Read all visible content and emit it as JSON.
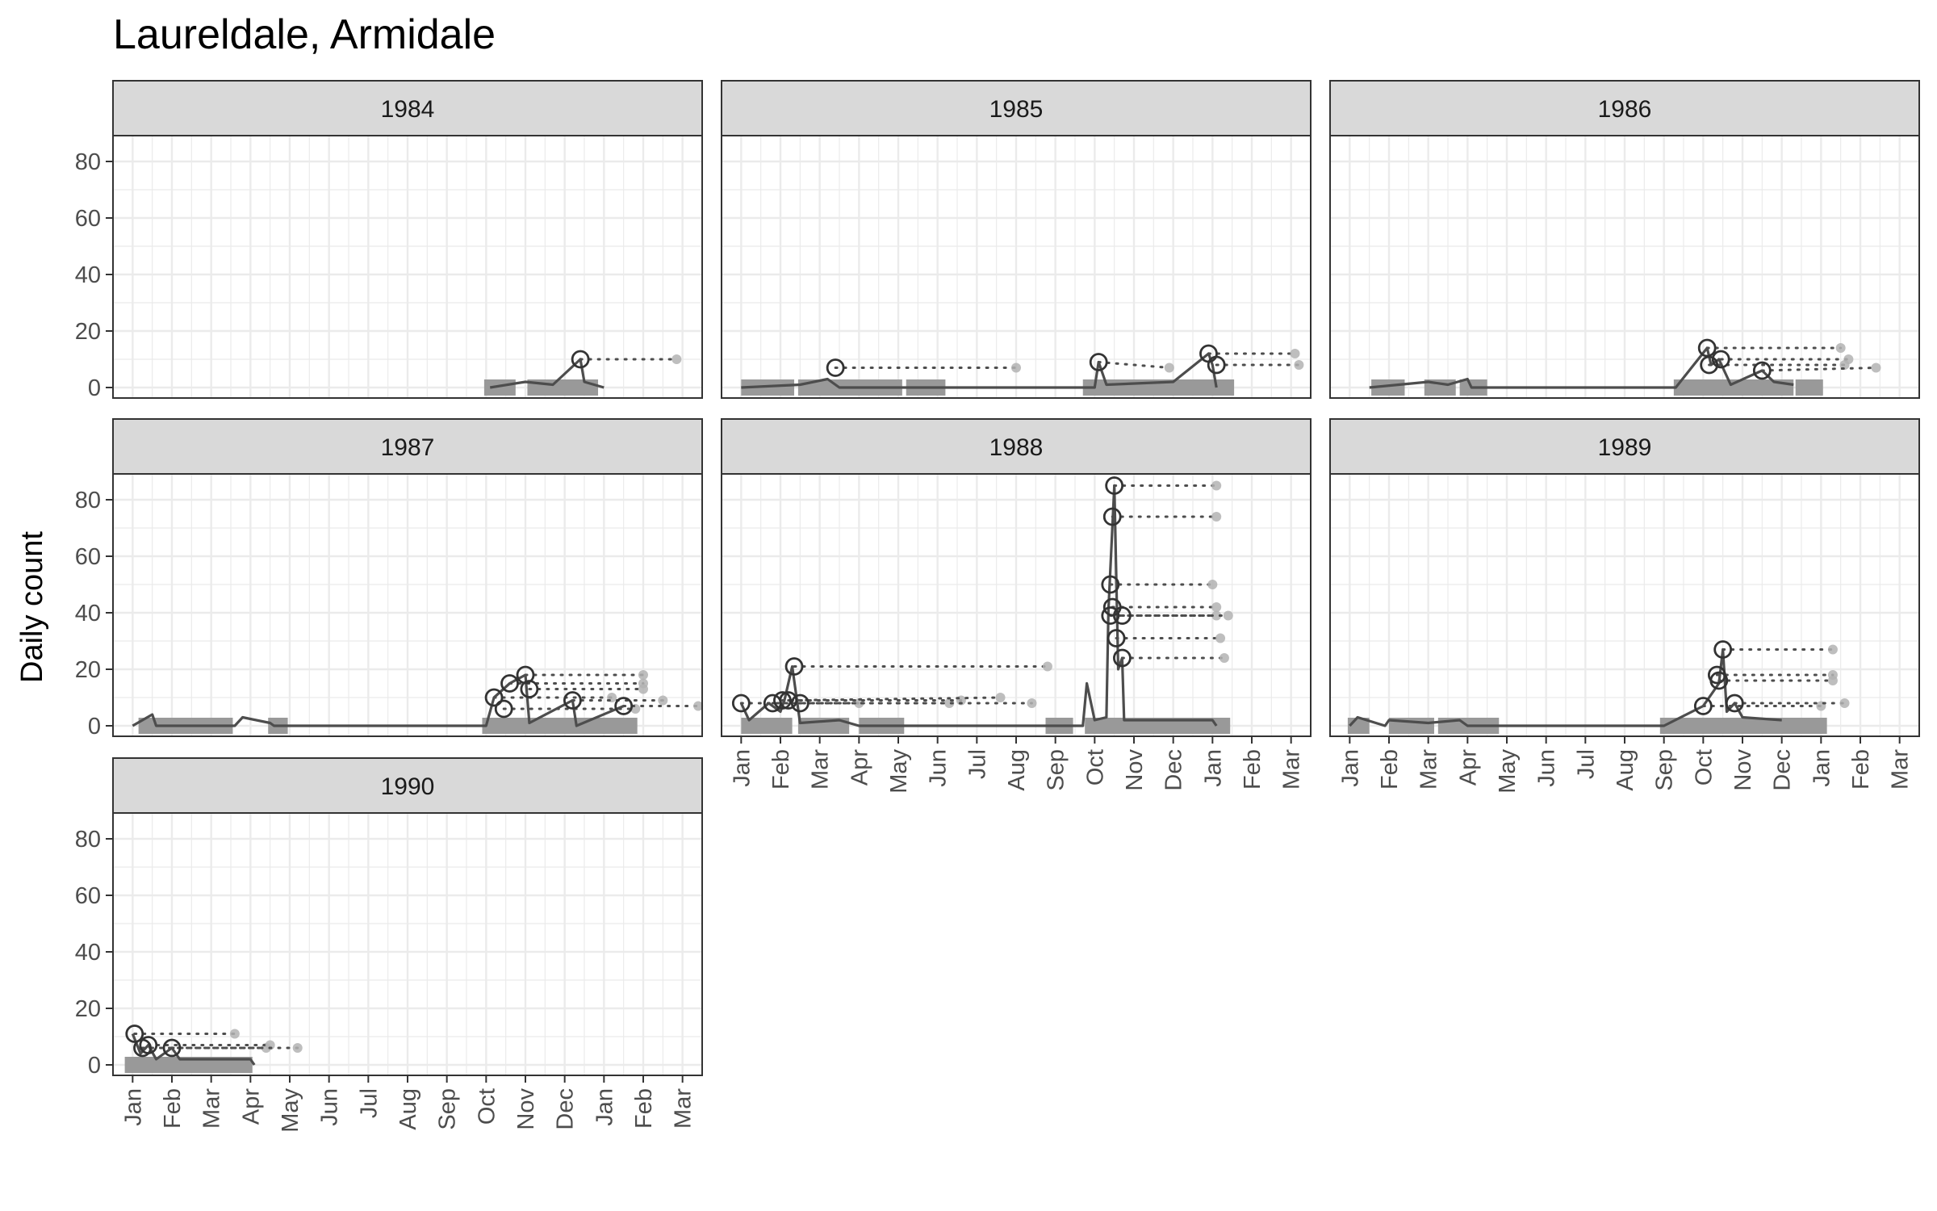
{
  "chart_data": {
    "type": "line",
    "title": "Laureldale, Armidale",
    "ylabel": "Daily count",
    "xlabel": "",
    "ylim": [
      0,
      90
    ],
    "yticks": [
      0,
      20,
      40,
      60,
      80
    ],
    "xlim": [
      0,
      15
    ],
    "xticks": [
      0.5,
      1.5,
      2.5,
      3.5,
      4.5,
      5.5,
      6.5,
      7.5,
      8.5,
      9.5,
      10.5,
      11.5,
      12.5,
      13.5,
      14.5
    ],
    "xtick_labels": [
      "Jan",
      "Feb",
      "Mar",
      "Apr",
      "May",
      "Jun",
      "Jul",
      "Aug",
      "Sep",
      "Oct",
      "Nov",
      "Dec",
      "Jan",
      "Feb",
      "Mar"
    ],
    "x_units": "months from January of the panel year",
    "grid": true,
    "colors": {
      "line": "#4d4d4d",
      "bar": "#999999",
      "strip_fill": "#d9d9d9",
      "panel_border": "#333333",
      "grid": "#ebebeb",
      "dot": "#b3b3b3"
    },
    "panels": [
      {
        "label": "1984",
        "line": [
          [
            9.6,
            0
          ],
          [
            10.5,
            2
          ],
          [
            11.2,
            1
          ],
          [
            11.9,
            10
          ],
          [
            12.0,
            2
          ],
          [
            12.5,
            0
          ]
        ],
        "bars": [
          [
            9.45,
            10.25
          ],
          [
            10.55,
            12.35
          ]
        ],
        "peaks": [
          {
            "x": 11.9,
            "y": 10,
            "tx": 14.35,
            "ty": 10
          }
        ]
      },
      {
        "label": "1985",
        "line": [
          [
            0.5,
            0
          ],
          [
            2.0,
            1
          ],
          [
            2.7,
            3
          ],
          [
            3.0,
            0
          ],
          [
            9.5,
            0
          ],
          [
            9.6,
            9
          ],
          [
            9.8,
            1
          ],
          [
            11.5,
            2
          ],
          [
            12.4,
            12
          ],
          [
            12.5,
            8
          ],
          [
            12.6,
            0
          ]
        ],
        "bars": [
          [
            0.5,
            1.85
          ],
          [
            1.95,
            4.6
          ],
          [
            4.7,
            5.7
          ],
          [
            9.2,
            13.05
          ]
        ],
        "peaks": [
          {
            "x": 2.9,
            "y": 7,
            "tx": 7.5,
            "ty": 7
          },
          {
            "x": 9.6,
            "y": 9,
            "tx": 11.4,
            "ty": 7
          },
          {
            "x": 12.4,
            "y": 12,
            "tx": 14.6,
            "ty": 12
          },
          {
            "x": 12.6,
            "y": 8,
            "tx": 14.7,
            "ty": 8
          }
        ]
      },
      {
        "label": "1986",
        "line": [
          [
            1.0,
            0
          ],
          [
            2.5,
            2
          ],
          [
            3.0,
            1
          ],
          [
            3.5,
            3
          ],
          [
            3.6,
            0
          ],
          [
            8.8,
            0
          ],
          [
            9.6,
            14
          ],
          [
            9.7,
            8
          ],
          [
            9.9,
            10
          ],
          [
            10.2,
            1
          ],
          [
            11.0,
            6
          ],
          [
            11.3,
            2
          ],
          [
            11.8,
            1
          ]
        ],
        "bars": [
          [
            1.05,
            1.9
          ],
          [
            2.4,
            3.2
          ],
          [
            3.3,
            4.0
          ],
          [
            8.75,
            11.8
          ],
          [
            11.85,
            12.55
          ]
        ],
        "peaks": [
          {
            "x": 9.6,
            "y": 14,
            "tx": 13.0,
            "ty": 14
          },
          {
            "x": 9.65,
            "y": 8,
            "tx": 13.1,
            "ty": 8
          },
          {
            "x": 9.95,
            "y": 10,
            "tx": 13.2,
            "ty": 10
          },
          {
            "x": 11.0,
            "y": 6,
            "tx": 13.9,
            "ty": 7
          }
        ]
      },
      {
        "label": "1987",
        "line": [
          [
            0.5,
            0
          ],
          [
            1.0,
            4
          ],
          [
            1.1,
            0
          ],
          [
            3.1,
            0
          ],
          [
            3.3,
            3
          ],
          [
            4.0,
            1
          ],
          [
            4.1,
            0
          ],
          [
            9.5,
            0
          ],
          [
            9.7,
            10
          ],
          [
            10.1,
            15
          ],
          [
            10.5,
            18
          ],
          [
            10.6,
            1
          ],
          [
            11.7,
            9
          ],
          [
            11.8,
            0
          ],
          [
            13.0,
            7
          ]
        ],
        "bars": [
          [
            0.65,
            3.05
          ],
          [
            3.95,
            4.45
          ],
          [
            9.4,
            13.35
          ]
        ],
        "peaks": [
          {
            "x": 9.7,
            "y": 10,
            "tx": 12.7,
            "ty": 10
          },
          {
            "x": 9.95,
            "y": 6,
            "tx": 13.3,
            "ty": 6
          },
          {
            "x": 10.1,
            "y": 15,
            "tx": 13.5,
            "ty": 15
          },
          {
            "x": 10.5,
            "y": 18,
            "tx": 13.5,
            "ty": 18
          },
          {
            "x": 10.6,
            "y": 13,
            "tx": 13.5,
            "ty": 13
          },
          {
            "x": 11.7,
            "y": 9,
            "tx": 14.0,
            "ty": 9
          },
          {
            "x": 13.0,
            "y": 7,
            "tx": 14.9,
            "ty": 7
          }
        ]
      },
      {
        "label": "1988",
        "line": [
          [
            0.5,
            8
          ],
          [
            0.7,
            2
          ],
          [
            1.2,
            8
          ],
          [
            1.5,
            5
          ],
          [
            1.6,
            9
          ],
          [
            1.8,
            21
          ],
          [
            2.0,
            1
          ],
          [
            3.0,
            2
          ],
          [
            3.5,
            0
          ],
          [
            9.2,
            0
          ],
          [
            9.3,
            15
          ],
          [
            9.5,
            2
          ],
          [
            9.8,
            3
          ],
          [
            9.85,
            41
          ],
          [
            10.0,
            85
          ],
          [
            10.1,
            20
          ],
          [
            10.2,
            24
          ],
          [
            10.25,
            2
          ],
          [
            11.5,
            2
          ],
          [
            12.5,
            2
          ],
          [
            12.6,
            0
          ]
        ],
        "bars": [
          [
            0.5,
            1.8
          ],
          [
            1.95,
            3.25
          ],
          [
            3.5,
            4.65
          ],
          [
            8.25,
            8.95
          ],
          [
            9.25,
            12.95
          ]
        ],
        "peaks": [
          {
            "x": 0.5,
            "y": 8,
            "tx": 3.5,
            "ty": 8
          },
          {
            "x": 1.3,
            "y": 8,
            "tx": 5.8,
            "ty": 8
          },
          {
            "x": 1.55,
            "y": 9,
            "tx": 6.1,
            "ty": 9
          },
          {
            "x": 1.7,
            "y": 9,
            "tx": 7.1,
            "ty": 10
          },
          {
            "x": 1.85,
            "y": 21,
            "tx": 8.3,
            "ty": 21
          },
          {
            "x": 2.0,
            "y": 8,
            "tx": 7.9,
            "ty": 8
          },
          {
            "x": 10.0,
            "y": 85,
            "tx": 12.6,
            "ty": 85
          },
          {
            "x": 9.95,
            "y": 74,
            "tx": 12.6,
            "ty": 74
          },
          {
            "x": 9.9,
            "y": 50,
            "tx": 12.5,
            "ty": 50
          },
          {
            "x": 9.95,
            "y": 42,
            "tx": 12.6,
            "ty": 42
          },
          {
            "x": 9.9,
            "y": 39,
            "tx": 12.6,
            "ty": 39
          },
          {
            "x": 10.2,
            "y": 39,
            "tx": 12.9,
            "ty": 39
          },
          {
            "x": 10.05,
            "y": 31,
            "tx": 12.7,
            "ty": 31
          },
          {
            "x": 10.2,
            "y": 24,
            "tx": 12.8,
            "ty": 24
          }
        ]
      },
      {
        "label": "1989",
        "line": [
          [
            0.5,
            0
          ],
          [
            0.7,
            3
          ],
          [
            1.4,
            0
          ],
          [
            1.5,
            2
          ],
          [
            2.5,
            1
          ],
          [
            3.3,
            2
          ],
          [
            3.5,
            0
          ],
          [
            8.5,
            0
          ],
          [
            9.5,
            7
          ],
          [
            9.9,
            15
          ],
          [
            10.0,
            27
          ],
          [
            10.1,
            5
          ],
          [
            10.3,
            8
          ],
          [
            10.5,
            3
          ],
          [
            11.5,
            2
          ]
        ],
        "bars": [
          [
            0.45,
            1.0
          ],
          [
            1.5,
            2.65
          ],
          [
            2.75,
            4.3
          ],
          [
            8.4,
            12.65
          ]
        ],
        "peaks": [
          {
            "x": 9.5,
            "y": 7,
            "tx": 12.5,
            "ty": 7
          },
          {
            "x": 9.9,
            "y": 16,
            "tx": 12.8,
            "ty": 16
          },
          {
            "x": 9.85,
            "y": 18,
            "tx": 12.8,
            "ty": 18
          },
          {
            "x": 10.0,
            "y": 27,
            "tx": 12.8,
            "ty": 27
          },
          {
            "x": 10.3,
            "y": 8,
            "tx": 13.1,
            "ty": 8
          }
        ]
      },
      {
        "label": "1990",
        "line": [
          [
            0.5,
            11
          ],
          [
            0.7,
            4
          ],
          [
            0.9,
            7
          ],
          [
            1.1,
            2
          ],
          [
            1.5,
            6
          ],
          [
            1.7,
            2
          ],
          [
            2.6,
            2
          ],
          [
            3.5,
            2
          ],
          [
            3.6,
            0
          ]
        ],
        "bars": [
          [
            0.3,
            3.55
          ]
        ],
        "peaks": [
          {
            "x": 0.55,
            "y": 11,
            "tx": 3.1,
            "ty": 11
          },
          {
            "x": 0.75,
            "y": 6,
            "tx": 3.9,
            "ty": 6
          },
          {
            "x": 0.9,
            "y": 7,
            "tx": 4.0,
            "ty": 7
          },
          {
            "x": 1.5,
            "y": 6,
            "tx": 4.7,
            "ty": 6
          }
        ]
      }
    ]
  }
}
